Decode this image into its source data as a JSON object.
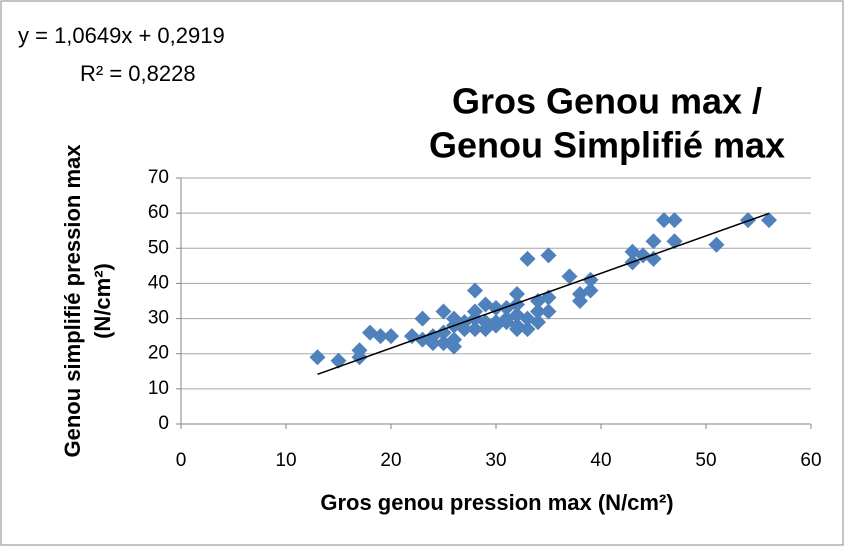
{
  "chart_data": {
    "type": "scatter",
    "title": [
      "Gros Genou max /",
      "Genou Simplifié max"
    ],
    "xlabel": "Gros genou pression max (N/cm²)",
    "ylabel": [
      "Genou simplifié pression max",
      "(N/cm²)"
    ],
    "color": "#4f81bd",
    "grid": true,
    "xlim": [
      0,
      60
    ],
    "xticks": [
      0,
      10,
      20,
      30,
      40,
      50,
      60
    ],
    "ylim": [
      0,
      70
    ],
    "yticks": [
      0,
      10,
      20,
      30,
      40,
      50,
      60,
      70
    ],
    "trendline": {
      "equation": "y = 1,0649x + 0,2919",
      "r2": "R² = 0,8228",
      "slope": 1.0649,
      "intercept": 0.2919,
      "color": "#000000"
    },
    "x": [
      13,
      15,
      17,
      17,
      18,
      19,
      20,
      22,
      23,
      23,
      24,
      24,
      25,
      25,
      25,
      26,
      26,
      26,
      26,
      27,
      27,
      28,
      28,
      28,
      28,
      29,
      29,
      29,
      30,
      30,
      30,
      31,
      31,
      31,
      32,
      32,
      32,
      32,
      32,
      33,
      33,
      33,
      34,
      34,
      34,
      35,
      35,
      35,
      37,
      38,
      38,
      39,
      39,
      43,
      43,
      44,
      45,
      45,
      46,
      47,
      47,
      51,
      54,
      56
    ],
    "values": [
      19,
      18,
      19,
      21,
      26,
      25,
      25,
      25,
      30,
      24,
      23,
      25,
      32,
      23,
      26,
      22,
      24,
      30,
      28,
      29,
      27,
      38,
      30,
      27,
      32,
      34,
      29,
      27,
      33,
      29,
      28,
      30,
      33,
      29,
      37,
      34,
      31,
      28,
      27,
      47,
      30,
      27,
      35,
      32,
      29,
      48,
      36,
      32,
      42,
      35,
      37,
      41,
      38,
      49,
      46,
      48,
      52,
      47,
      58,
      58,
      52,
      51,
      58,
      58
    ]
  }
}
